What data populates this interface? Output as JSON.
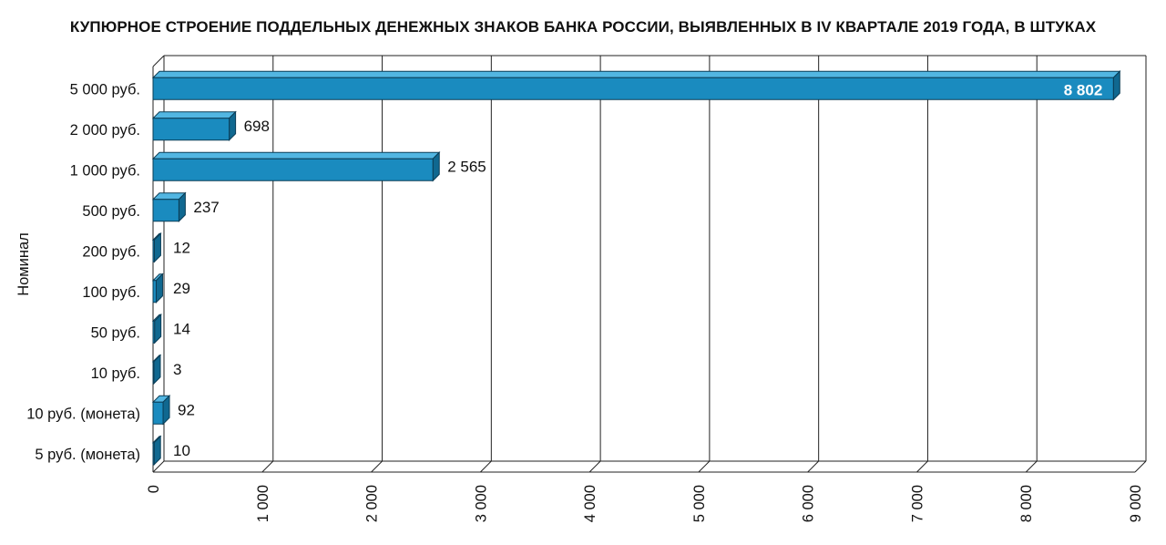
{
  "chart_data": {
    "type": "bar",
    "orientation": "horizontal",
    "title": "КУПЮРНОЕ СТРОЕНИЕ ПОДДЕЛЬНЫХ ДЕНЕЖНЫХ ЗНАКОВ БАНКА РОССИИ, ВЫЯВЛЕННЫХ В IV КВАРТАЛЕ 2019 ГОДА, В ШТУКАХ",
    "ylabel": "Номинал",
    "xlabel": "",
    "categories": [
      "5 000 руб.",
      "2 000 руб.",
      "1 000 руб.",
      "500 руб.",
      "200 руб.",
      "100 руб.",
      "50 руб.",
      "10 руб.",
      "10 руб. (монета)",
      "5 руб. (монета)"
    ],
    "values": [
      8802,
      698,
      2565,
      237,
      12,
      29,
      14,
      3,
      92,
      10
    ],
    "value_labels": [
      "8 802",
      "698",
      "2 565",
      "237",
      "12",
      "29",
      "14",
      "3",
      "92",
      "10"
    ],
    "xlim": [
      0,
      9000
    ],
    "xticks": [
      0,
      1000,
      2000,
      3000,
      4000,
      5000,
      6000,
      7000,
      8000,
      9000
    ],
    "xtick_labels": [
      "0",
      "1 000",
      "2 000",
      "3 000",
      "4 000",
      "5 000",
      "6 000",
      "7 000",
      "8 000",
      "9 000"
    ],
    "grid": true,
    "legend": "none",
    "bar_color": "#1a8bbf",
    "bar_side_color": "#106890",
    "bar_top_color": "#52b6e2"
  }
}
